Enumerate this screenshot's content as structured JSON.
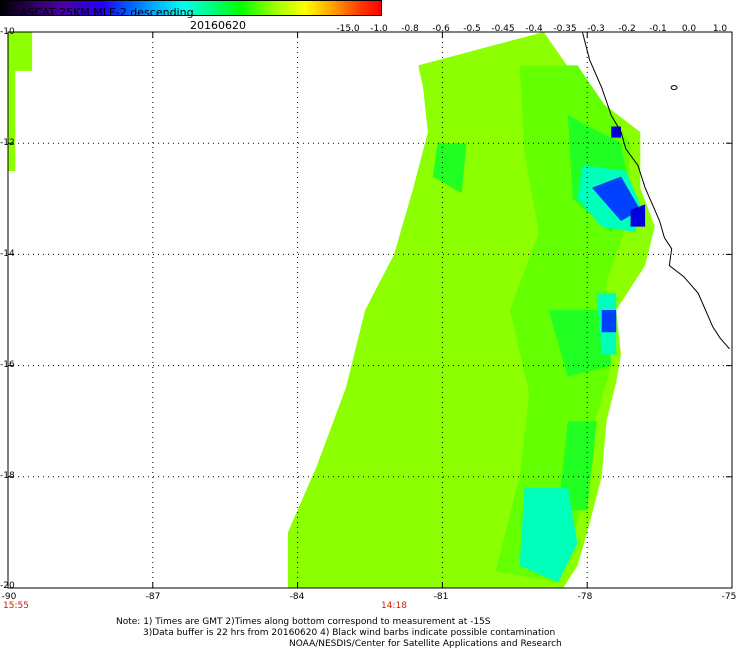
{
  "header": {
    "title": "ASCAT 25KM MLE-2 descending",
    "date": "20160620"
  },
  "colorbar": {
    "tick_labels": [
      "-15.0",
      "-1.0",
      "-0.8",
      "-0.6",
      "-0.5",
      "-0.45",
      "-0.4",
      "-0.35",
      "-0.3",
      "-0.2",
      "-0.1",
      "0.0",
      "1.0"
    ]
  },
  "map": {
    "lat_labels": [
      "-10",
      "-12",
      "-14",
      "-16",
      "-18",
      "-20"
    ],
    "lon_labels": [
      "-90",
      "-87",
      "-84",
      "-81",
      "-78",
      "-75"
    ],
    "time_labels": [
      "15:55",
      "14:18"
    ],
    "colors": {
      "swath_fill": "#8cff00",
      "swath_alt": "#64ff00",
      "mid_green": "#22ff22",
      "cyan": "#00ffbb",
      "blue": "#0040ff",
      "deep_blue": "#0000dd",
      "coastline": "#000000",
      "grid": "#000000",
      "time_text": "#cc2200"
    }
  },
  "notes": {
    "line1": "Note: 1) Times are GMT 2)Times along bottom correspond to measurement at -15S",
    "line2": "3)Data buffer is 22 hrs from 20160620 4) Black wind barbs indicate possible contamination",
    "line3": "NOAA/NESDIS/Center for Satellite Applications and Research"
  }
}
